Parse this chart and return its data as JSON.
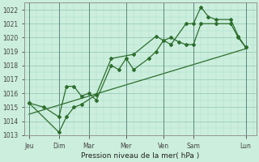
{
  "background_color": "#cceedd",
  "grid_color_major": "#99ccbb",
  "grid_color_minor": "#aaddcc",
  "line_color": "#2d6e2d",
  "xlabel": "Pression niveau de la mer( hPa )",
  "ylim": [
    1013,
    1022.5
  ],
  "xlim": [
    -0.3,
    15.2
  ],
  "yticks": [
    1013,
    1014,
    1015,
    1016,
    1017,
    1018,
    1019,
    1020,
    1021,
    1022
  ],
  "day_labels": [
    "Jeu",
    "Dim",
    "Mar",
    "Mer",
    "Ven",
    "Sam",
    "Lun"
  ],
  "day_positions": [
    0.0,
    2.0,
    4.0,
    6.5,
    9.0,
    11.0,
    14.5
  ],
  "series1_x": [
    0.0,
    1.0,
    2.0,
    2.5,
    3.0,
    3.5,
    4.0,
    4.5,
    5.5,
    6.0,
    6.5,
    7.0,
    8.0,
    8.5,
    9.0,
    9.5,
    10.0,
    10.5,
    11.0,
    11.5,
    12.5,
    13.5,
    14.0,
    14.5
  ],
  "series1_y": [
    1015.3,
    1015.0,
    1014.3,
    1016.5,
    1016.5,
    1015.8,
    1016.0,
    1015.5,
    1018.0,
    1017.7,
    1018.5,
    1017.7,
    1018.5,
    1019.0,
    1019.8,
    1020.0,
    1019.7,
    1019.5,
    1019.5,
    1021.0,
    1021.0,
    1021.0,
    1020.0,
    1019.3
  ],
  "series2_x": [
    0.0,
    2.0,
    2.5,
    3.0,
    3.5,
    4.5,
    5.5,
    7.0,
    8.5,
    9.5,
    10.5,
    11.0,
    11.5,
    12.0,
    12.5,
    13.5,
    14.0,
    14.5
  ],
  "series2_y": [
    1015.3,
    1013.2,
    1014.3,
    1015.0,
    1015.2,
    1015.9,
    1018.5,
    1018.8,
    1020.1,
    1019.5,
    1021.0,
    1021.0,
    1022.2,
    1021.5,
    1021.3,
    1021.3,
    1020.1,
    1019.3
  ],
  "trend_x": [
    0.0,
    14.5
  ],
  "trend_y": [
    1014.5,
    1019.2
  ]
}
